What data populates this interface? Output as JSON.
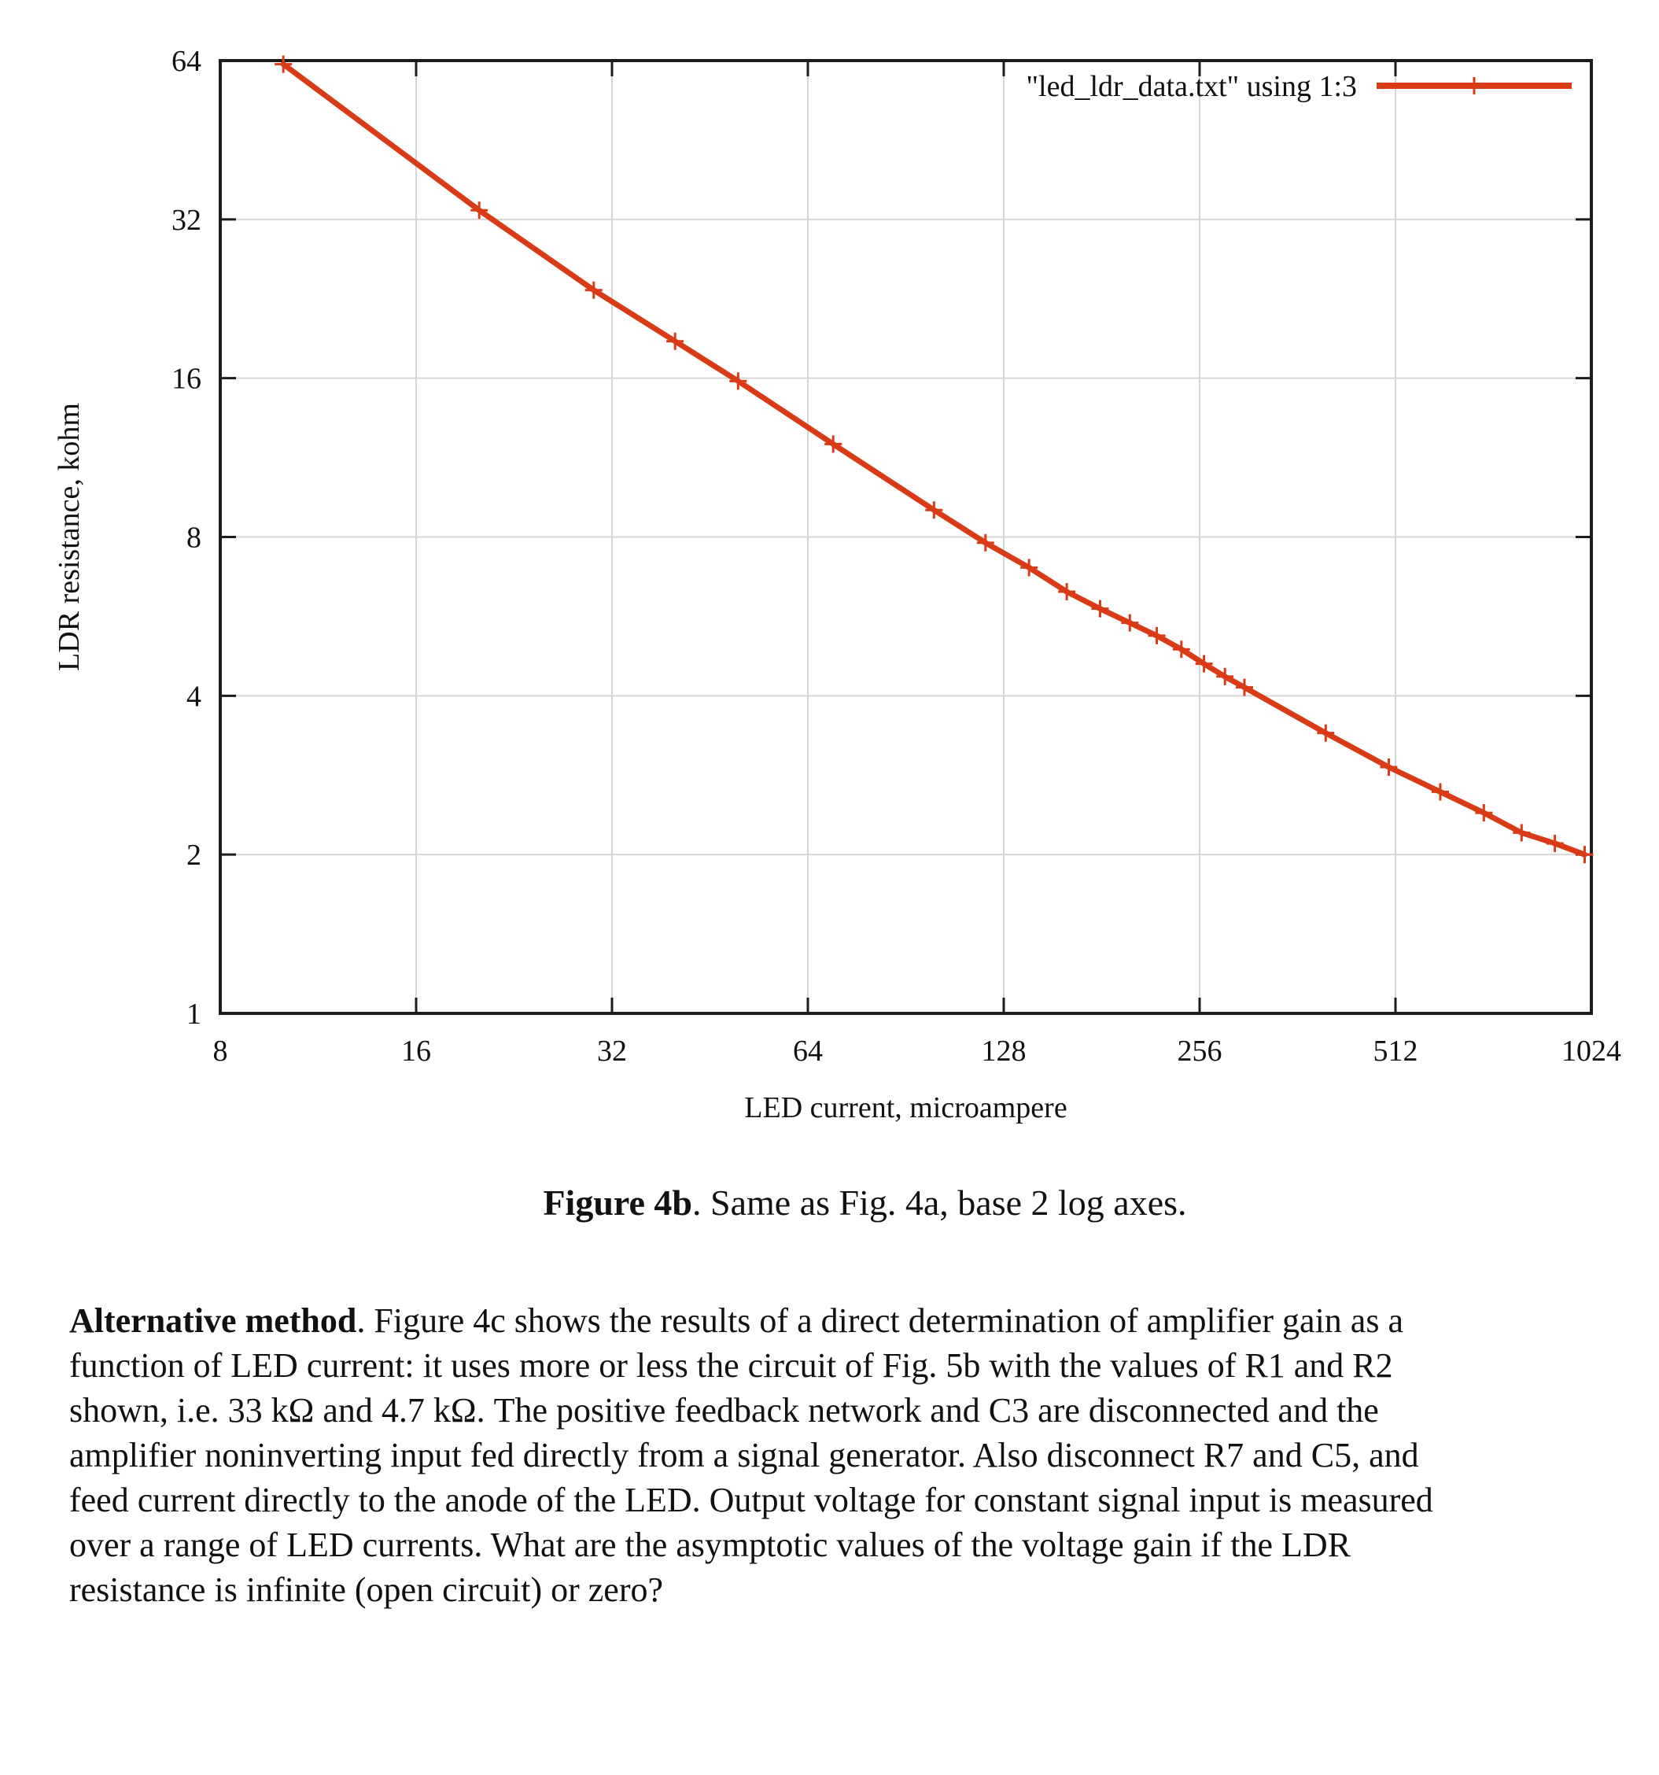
{
  "chart": {
    "legend_label": "\"led_ldr_data.txt\" using 1:3",
    "colors": {
      "series": "#d83b16",
      "grid": "#d6d6d6",
      "axis": "#1c1c1c",
      "text": "#111111"
    }
  },
  "chart_data": {
    "type": "line",
    "title": "",
    "xlabel": "LED current, microampere",
    "ylabel": "LDR resistance, kohm",
    "x_scale": "log2",
    "y_scale": "log2",
    "xlim": [
      8,
      1024
    ],
    "ylim": [
      1,
      64
    ],
    "x_ticks": [
      8,
      16,
      32,
      64,
      128,
      256,
      512,
      1024
    ],
    "y_ticks": [
      64,
      32,
      16,
      8,
      4,
      2,
      1
    ],
    "grid": true,
    "legend_position": "top-right-inside",
    "legend": [
      "\"led_ldr_data.txt\" using 1:3"
    ],
    "series": [
      {
        "name": "\"led_ldr_data.txt\" using 1:3",
        "marker": "plus",
        "color": "#d83b16",
        "x": [
          10,
          20,
          30,
          40,
          50,
          70,
          100,
          120,
          140,
          160,
          180,
          200,
          220,
          240,
          260,
          280,
          300,
          400,
          500,
          600,
          700,
          800,
          900,
          1000
        ],
        "y": [
          63,
          33.3,
          23.5,
          18.8,
          15.8,
          12.0,
          9.0,
          7.8,
          7.0,
          6.3,
          5.85,
          5.5,
          5.2,
          4.9,
          4.6,
          4.35,
          4.15,
          3.4,
          2.93,
          2.63,
          2.4,
          2.2,
          2.1,
          2.0
        ]
      }
    ]
  },
  "caption": {
    "bold": "Figure 4b",
    "rest": ".  Same as Fig. 4a, base 2 log axes."
  },
  "paragraph": {
    "bold": "Alternative method",
    "rest": ".  Figure 4c shows the results of a direct determination of amplifier gain as a\nfunction of LED current: it uses more or less the circuit of Fig. 5b with the values of R1 and R2\nshown, i.e. 33 kΩ and 4.7 kΩ.  The positive feedback network and C3 are disconnected and the\namplifier noninverting input fed directly from a signal generator.   Also disconnect R7 and C5, and\nfeed current directly to the anode of the LED.  Output voltage for constant signal input is measured\nover a range of LED currents. What are the asymptotic values of the voltage gain if the LDR\nresistance is infinite (open circuit) or zero?"
  }
}
